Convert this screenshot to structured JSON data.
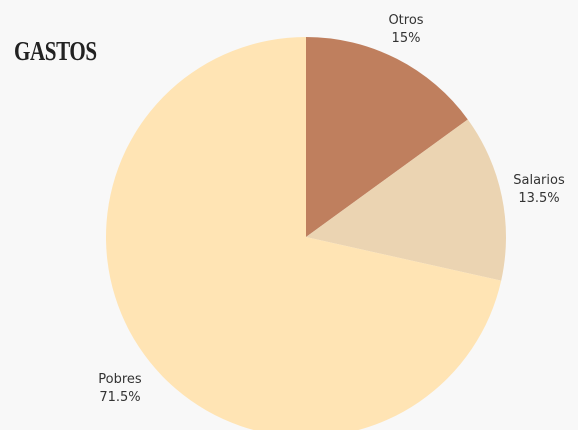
{
  "chart_data": {
    "type": "pie",
    "title": "GASTOS",
    "slices": [
      {
        "label": "Otros",
        "value": 15,
        "value_label": "15%",
        "color": "#bf7f5e"
      },
      {
        "label": "Salarios",
        "value": 13.5,
        "value_label": "13.5%",
        "color": "#ebd4b2"
      },
      {
        "label": "Pobres",
        "value": 71.5,
        "value_label": "71.5%",
        "color": "#ffe4b4"
      }
    ],
    "start_angle": "12 o'clock",
    "direction": "clockwise",
    "legend": "none"
  }
}
